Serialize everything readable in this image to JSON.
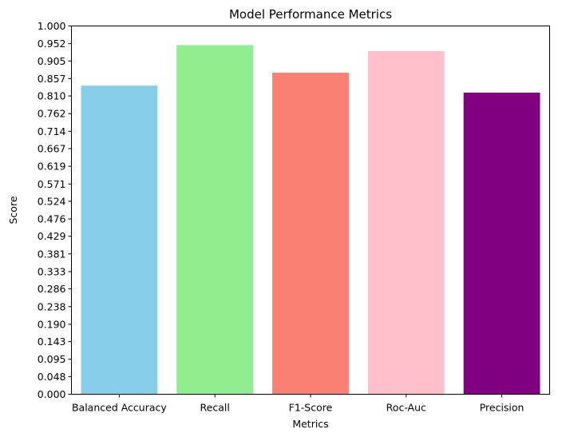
{
  "chart_data": {
    "type": "bar",
    "title": "Model Performance Metrics",
    "xlabel": "Metrics",
    "ylabel": "Score",
    "categories": [
      "Balanced Accuracy",
      "Recall",
      "F1-Score",
      "Roc-Auc",
      "Precision"
    ],
    "values": [
      0.838,
      0.948,
      0.873,
      0.932,
      0.819
    ],
    "colors": [
      "#87ceeb",
      "#90ee90",
      "#fa8072",
      "#ffc0cb",
      "#800080"
    ],
    "ylim": [
      0,
      1.0
    ],
    "yticks": [
      "0.000",
      "0.048",
      "0.095",
      "0.143",
      "0.190",
      "0.238",
      "0.286",
      "0.333",
      "0.381",
      "0.429",
      "0.476",
      "0.524",
      "0.571",
      "0.619",
      "0.667",
      "0.714",
      "0.762",
      "0.810",
      "0.857",
      "0.905",
      "0.952",
      "1.000"
    ],
    "grid": false,
    "legend": "none"
  }
}
